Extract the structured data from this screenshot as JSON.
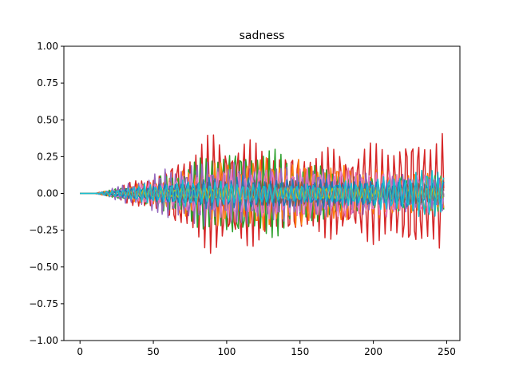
{
  "chart_data": {
    "type": "line",
    "title": "sadness",
    "xlabel": "",
    "ylabel": "",
    "xlim": [
      -11,
      259
    ],
    "ylim": [
      -1.0,
      1.0
    ],
    "x_ticks": [
      "0",
      "50",
      "100",
      "150",
      "200",
      "250"
    ],
    "x_tick_values": [
      0,
      50,
      100,
      150,
      200,
      250
    ],
    "y_ticks": [
      "−1.00",
      "−0.75",
      "−0.50",
      "−0.25",
      "0.00",
      "0.25",
      "0.50",
      "0.75",
      "1.00"
    ],
    "y_tick_values": [
      -1.0,
      -0.75,
      -0.5,
      -0.25,
      0.0,
      0.25,
      0.5,
      0.75,
      1.0
    ],
    "grid": false,
    "legend": "none",
    "x_range": [
      0,
      248
    ],
    "onset": 10,
    "series": [
      {
        "color": "#d62728",
        "anchors": [
          [
            0,
            0
          ],
          [
            10,
            0
          ],
          [
            50,
            0.13
          ],
          [
            90,
            0.43
          ],
          [
            100,
            0.43
          ],
          [
            140,
            0.3
          ],
          [
            180,
            0.33
          ],
          [
            215,
            0.38
          ],
          [
            248,
            0.46
          ]
        ],
        "period": 4.1,
        "phase": 0.0
      },
      {
        "color": "#2ca02c",
        "anchors": [
          [
            0,
            0
          ],
          [
            10,
            0
          ],
          [
            50,
            0.1
          ],
          [
            90,
            0.3
          ],
          [
            120,
            0.34
          ],
          [
            135,
            0.3
          ],
          [
            160,
            0.2
          ],
          [
            200,
            0.14
          ],
          [
            248,
            0.12
          ]
        ],
        "period": 3.9,
        "phase": 1.1
      },
      {
        "color": "#ff7f0e",
        "anchors": [
          [
            0,
            0
          ],
          [
            10,
            0
          ],
          [
            50,
            0.09
          ],
          [
            90,
            0.22
          ],
          [
            130,
            0.26
          ],
          [
            160,
            0.22
          ],
          [
            200,
            0.17
          ],
          [
            248,
            0.14
          ]
        ],
        "period": 4.4,
        "phase": 2.3
      },
      {
        "color": "#9467bd",
        "anchors": [
          [
            0,
            0
          ],
          [
            10,
            0
          ],
          [
            40,
            0.1
          ],
          [
            70,
            0.22
          ],
          [
            100,
            0.24
          ],
          [
            150,
            0.18
          ],
          [
            200,
            0.14
          ],
          [
            248,
            0.12
          ]
        ],
        "period": 3.6,
        "phase": 0.7
      },
      {
        "color": "#e377c2",
        "anchors": [
          [
            0,
            0
          ],
          [
            10,
            0
          ],
          [
            50,
            0.08
          ],
          [
            90,
            0.17
          ],
          [
            150,
            0.18
          ],
          [
            200,
            0.17
          ],
          [
            248,
            0.12
          ]
        ],
        "period": 4.7,
        "phase": 1.9
      },
      {
        "color": "#8c564b",
        "anchors": [
          [
            0,
            0
          ],
          [
            10,
            0
          ],
          [
            50,
            0.05
          ],
          [
            100,
            0.1
          ],
          [
            150,
            0.09
          ],
          [
            248,
            0.07
          ]
        ],
        "period": 4.0,
        "phase": 2.8
      },
      {
        "color": "#1f77b4",
        "anchors": [
          [
            0,
            0
          ],
          [
            10,
            0
          ],
          [
            50,
            0.06
          ],
          [
            100,
            0.13
          ],
          [
            150,
            0.1
          ],
          [
            248,
            0.09
          ]
        ],
        "period": 3.8,
        "phase": 0.4
      },
      {
        "color": "#bcbd22",
        "anchors": [
          [
            0,
            0
          ],
          [
            10,
            0
          ],
          [
            50,
            0.03
          ],
          [
            100,
            0.05
          ],
          [
            150,
            0.05
          ],
          [
            248,
            0.04
          ]
        ],
        "period": 4.3,
        "phase": 1.5
      },
      {
        "color": "#7f7f7f",
        "anchors": [
          [
            0,
            0
          ],
          [
            10,
            0
          ],
          [
            50,
            0.03
          ],
          [
            100,
            0.05
          ],
          [
            248,
            0.05
          ]
        ],
        "period": 4.5,
        "phase": 3.0
      },
      {
        "color": "#17becf",
        "anchors": [
          [
            0,
            0
          ],
          [
            10,
            0
          ],
          [
            40,
            0.06
          ],
          [
            80,
            0.1
          ],
          [
            100,
            0.08
          ],
          [
            150,
            0.06
          ],
          [
            200,
            0.1
          ],
          [
            248,
            0.2
          ]
        ],
        "period": 3.7,
        "phase": 2.1
      }
    ]
  }
}
